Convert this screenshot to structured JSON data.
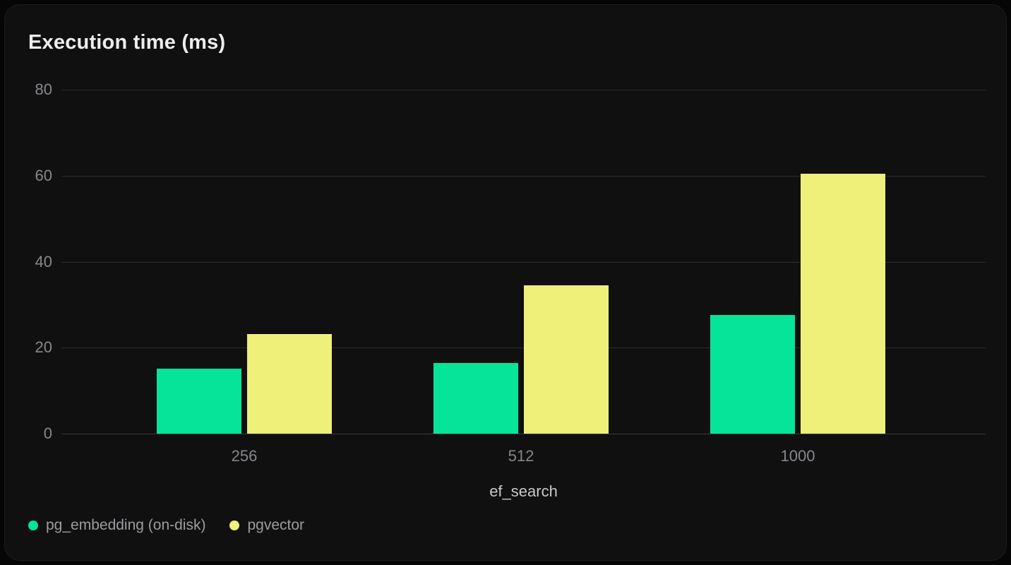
{
  "card": {
    "title": "Execution time (ms)"
  },
  "chart_data": {
    "type": "bar",
    "title": "Execution time (ms)",
    "xlabel": "ef_search",
    "ylabel": "",
    "categories": [
      "256",
      "512",
      "1000"
    ],
    "series": [
      {
        "name": "pg_embedding (on-disk)",
        "color": "#06e49a",
        "values": [
          15.1,
          16.4,
          27.6
        ]
      },
      {
        "name": "pgvector",
        "color": "#eef07a",
        "values": [
          23.2,
          34.5,
          60.5
        ]
      }
    ],
    "ylim": [
      0,
      80
    ],
    "yticks": [
      80,
      60,
      40,
      20,
      0
    ],
    "grid": true,
    "legend_position": "bottom-left"
  },
  "colors": {
    "page_background": "#060606",
    "card_background": "#101011",
    "card_border": "#1d1d1f",
    "gridline": "#2d2d30",
    "baseline": "#3a3a3d",
    "title_text": "#ededee",
    "tick_text": "#88888d",
    "axis_label_text": "#c9c9cd",
    "legend_text": "#9c9ca1",
    "series_green": "#06e49a",
    "series_yellow": "#eef07a"
  }
}
